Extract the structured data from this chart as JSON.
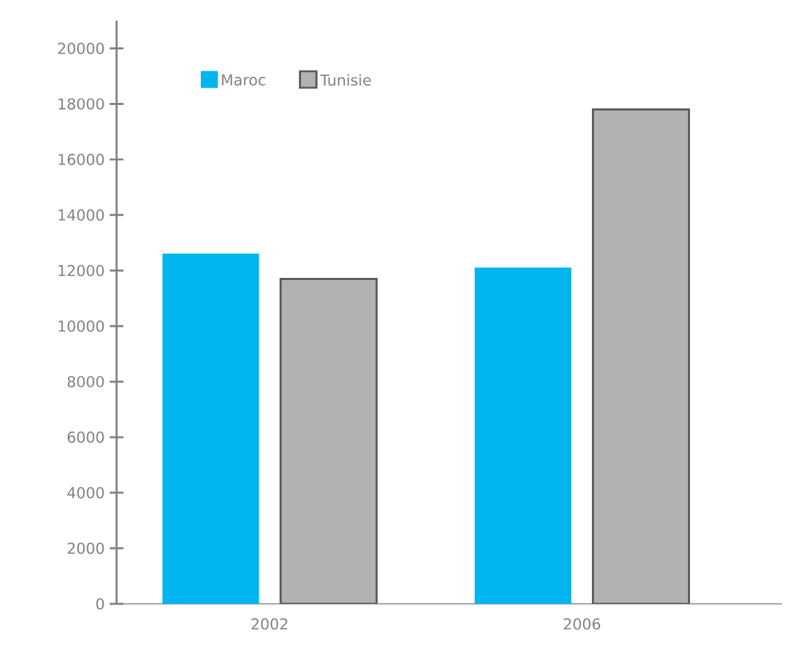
{
  "chart_data": {
    "type": "bar",
    "categories": [
      "2002",
      "2006"
    ],
    "series": [
      {
        "name": "Maroc",
        "color": "#00b5ef",
        "values": [
          12600,
          12100
        ]
      },
      {
        "name": "Tunisie",
        "color": "#b1b2b4",
        "values": [
          11700,
          17800
        ]
      }
    ],
    "ylim": [
      0,
      21000
    ],
    "yticks": [
      0,
      2000,
      4000,
      6000,
      8000,
      10000,
      12000,
      14000,
      16000,
      18000,
      20000
    ],
    "legend": "top left",
    "grid": false
  }
}
